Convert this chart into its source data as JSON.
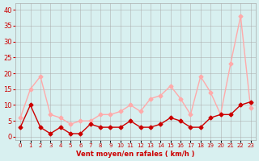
{
  "x": [
    0,
    1,
    2,
    3,
    4,
    5,
    6,
    7,
    8,
    9,
    10,
    11,
    12,
    13,
    14,
    15,
    16,
    17,
    18,
    19,
    20,
    21,
    22,
    23
  ],
  "wind_avg": [
    3,
    10,
    3,
    1,
    3,
    1,
    1,
    4,
    3,
    3,
    3,
    5,
    3,
    3,
    4,
    6,
    5,
    3,
    3,
    6,
    7,
    7,
    10,
    11
  ],
  "wind_gust": [
    6,
    15,
    19,
    7,
    6,
    4,
    5,
    5,
    7,
    7,
    8,
    10,
    8,
    12,
    13,
    16,
    12,
    7,
    19,
    14,
    7,
    23,
    38,
    9
  ],
  "avg_color": "#cc0000",
  "gust_color": "#ffaaaa",
  "bg_color": "#d8f0f0",
  "grid_color": "#aaaaaa",
  "xlabel": "Vent moyen/en rafales ( km/h )",
  "xlabel_color": "#cc0000",
  "ylabel_color": "#cc0000",
  "yticks": [
    0,
    5,
    10,
    15,
    20,
    25,
    30,
    35,
    40
  ],
  "ylim": [
    -1,
    42
  ],
  "xlim": [
    -0.5,
    23.5
  ],
  "title_color": "#cc0000"
}
